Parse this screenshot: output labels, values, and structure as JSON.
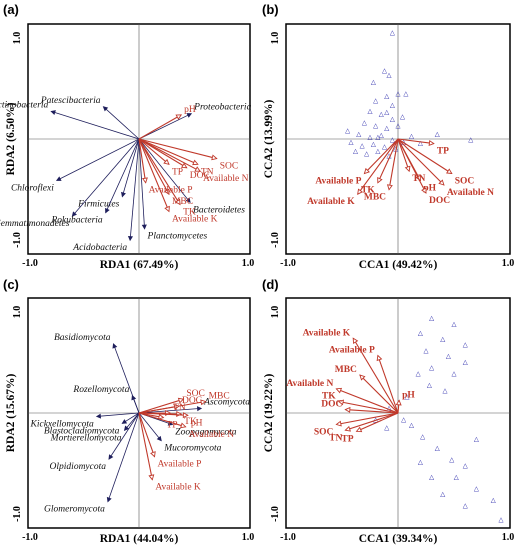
{
  "colors": {
    "env": "#c0392b",
    "taxa": "#1f1f5c",
    "sites": "#1a1aa6"
  },
  "chart_data": [
    {
      "panel": "(a)",
      "type": "scatter",
      "xlabel": "RDA1 (67.49%)",
      "ylabel": "RDA2 (6.50%)",
      "xlim": [
        -1.0,
        1.0
      ],
      "ylim": [
        -1.0,
        1.0
      ],
      "ticks": {
        "xmin": "-1.0",
        "xmax": "1.0",
        "ymin": "-1.0",
        "ymax": "1.0"
      },
      "env": [
        {
          "label": "pH",
          "x": 0.38,
          "y": 0.21
        },
        {
          "label": "TN",
          "x": 0.53,
          "y": -0.22
        },
        {
          "label": "SOC",
          "x": 0.7,
          "y": -0.17
        },
        {
          "label": "DOC",
          "x": 0.43,
          "y": -0.25
        },
        {
          "label": "TP",
          "x": 0.27,
          "y": -0.22
        },
        {
          "label": "Available N",
          "x": 0.55,
          "y": -0.28
        },
        {
          "label": "MBC",
          "x": 0.27,
          "y": -0.48
        },
        {
          "label": "TK",
          "x": 0.37,
          "y": -0.57
        },
        {
          "label": "Available K",
          "x": 0.27,
          "y": -0.63
        },
        {
          "label": "Available P",
          "x": 0.06,
          "y": -0.38
        }
      ],
      "taxa": [
        {
          "label": "Actinobacteria",
          "x": -0.79,
          "y": 0.24
        },
        {
          "label": "Patescibacteria",
          "x": -0.32,
          "y": 0.28
        },
        {
          "label": "Proteobacteria",
          "x": 0.47,
          "y": 0.22
        },
        {
          "label": "Chloroflexi",
          "x": -0.74,
          "y": -0.36
        },
        {
          "label": "Firmicutes",
          "x": -0.15,
          "y": -0.5
        },
        {
          "label": "Bacteroidetes",
          "x": 0.46,
          "y": -0.55
        },
        {
          "label": "Gemmatimonadetes",
          "x": -0.6,
          "y": -0.67
        },
        {
          "label": "Rokubacteria",
          "x": -0.3,
          "y": -0.64
        },
        {
          "label": "Planctomycetes",
          "x": 0.05,
          "y": -0.78
        },
        {
          "label": "Acidobacteria",
          "x": -0.08,
          "y": -0.88
        }
      ]
    },
    {
      "panel": "(b)",
      "type": "scatter",
      "xlabel": "CCA1 (49.42%)",
      "ylabel": "CCA2 (13.99%)",
      "xlim": [
        -1.0,
        1.0
      ],
      "ylim": [
        -1.0,
        1.0
      ],
      "ticks": {
        "xmin": "-1.0",
        "xmax": "1.0",
        "ymin": "-1.0",
        "ymax": "1.0"
      },
      "env": [
        {
          "label": "TP",
          "x": 0.32,
          "y": -0.04
        },
        {
          "label": "TN",
          "x": 0.1,
          "y": -0.28
        },
        {
          "label": "SOC",
          "x": 0.48,
          "y": -0.3
        },
        {
          "label": "Available N",
          "x": 0.41,
          "y": -0.4
        },
        {
          "label": "pH",
          "x": 0.2,
          "y": -0.36
        },
        {
          "label": "DOC",
          "x": 0.25,
          "y": -0.47
        },
        {
          "label": "MBC",
          "x": -0.08,
          "y": -0.44
        },
        {
          "label": "TK",
          "x": -0.18,
          "y": -0.38
        },
        {
          "label": "Available P",
          "x": -0.3,
          "y": -0.3
        },
        {
          "label": "Available K",
          "x": -0.36,
          "y": -0.48
        }
      ],
      "sites": [
        {
          "x": -0.05,
          "y": 0.93
        },
        {
          "x": -0.12,
          "y": 0.6
        },
        {
          "x": -0.08,
          "y": 0.56
        },
        {
          "x": -0.22,
          "y": 0.5
        },
        {
          "x": 0.0,
          "y": 0.4
        },
        {
          "x": -0.1,
          "y": 0.38
        },
        {
          "x": 0.07,
          "y": 0.4
        },
        {
          "x": -0.2,
          "y": 0.34
        },
        {
          "x": -0.05,
          "y": 0.3
        },
        {
          "x": -0.25,
          "y": 0.25
        },
        {
          "x": -0.15,
          "y": 0.22
        },
        {
          "x": -0.05,
          "y": 0.18
        },
        {
          "x": 0.04,
          "y": 0.2
        },
        {
          "x": -0.3,
          "y": 0.15
        },
        {
          "x": -0.2,
          "y": 0.12
        },
        {
          "x": -0.1,
          "y": 0.1
        },
        {
          "x": 0.0,
          "y": 0.12
        },
        {
          "x": -0.35,
          "y": 0.05
        },
        {
          "x": -0.25,
          "y": 0.02
        },
        {
          "x": -0.15,
          "y": 0.04
        },
        {
          "x": -0.05,
          "y": 0.0
        },
        {
          "x": -0.42,
          "y": -0.02
        },
        {
          "x": -0.32,
          "y": -0.05
        },
        {
          "x": -0.22,
          "y": -0.04
        },
        {
          "x": -0.12,
          "y": -0.06
        },
        {
          "x": -0.02,
          "y": -0.08
        },
        {
          "x": -0.38,
          "y": -0.1
        },
        {
          "x": -0.28,
          "y": -0.12
        },
        {
          "x": -0.18,
          "y": -0.1
        },
        {
          "x": -0.08,
          "y": -0.14
        },
        {
          "x": 0.05,
          "y": -0.02
        },
        {
          "x": 0.12,
          "y": 0.03
        },
        {
          "x": -0.45,
          "y": 0.08
        },
        {
          "x": -0.1,
          "y": 0.24
        },
        {
          "x": 0.35,
          "y": 0.05
        },
        {
          "x": 0.65,
          "y": 0.0
        },
        {
          "x": 0.2,
          "y": -0.03
        },
        {
          "x": -0.18,
          "y": 0.02
        }
      ]
    },
    {
      "panel": "(c)",
      "type": "scatter",
      "xlabel": "RDA1 (44.04%)",
      "ylabel": "RDA2 (15.67%)",
      "xlim": [
        -1.0,
        1.0
      ],
      "ylim": [
        -1.0,
        1.0
      ],
      "ticks": {
        "xmin": "-1.0",
        "xmax": "1.0",
        "ymin": "-1.0",
        "ymax": "1.0"
      },
      "env": [
        {
          "label": "SOC",
          "x": 0.4,
          "y": 0.12
        },
        {
          "label": "MBC",
          "x": 0.6,
          "y": 0.1
        },
        {
          "label": "DOC",
          "x": 0.36,
          "y": 0.06
        },
        {
          "label": "TN",
          "x": 0.28,
          "y": 0.0
        },
        {
          "label": "TK",
          "x": 0.38,
          "y": -0.01
        },
        {
          "label": "pH",
          "x": 0.44,
          "y": -0.02
        },
        {
          "label": "TP",
          "x": 0.22,
          "y": -0.04
        },
        {
          "label": "Available N",
          "x": 0.42,
          "y": -0.12
        },
        {
          "label": "Available P",
          "x": 0.14,
          "y": -0.38
        },
        {
          "label": "Available K",
          "x": 0.12,
          "y": -0.58
        }
      ],
      "taxa": [
        {
          "label": "Basidiomycota",
          "x": -0.23,
          "y": 0.6
        },
        {
          "label": "Rozellomycota",
          "x": -0.06,
          "y": 0.15
        },
        {
          "label": "Kickxellomycota",
          "x": -0.38,
          "y": -0.03
        },
        {
          "label": "Blastocladiomycota",
          "x": -0.15,
          "y": -0.09
        },
        {
          "label": "Mortierellomycota",
          "x": -0.13,
          "y": -0.15
        },
        {
          "label": "Olpidiomycota",
          "x": -0.27,
          "y": -0.4
        },
        {
          "label": "Glomeromycota",
          "x": -0.28,
          "y": -0.77
        },
        {
          "label": "Ascomycota",
          "x": 0.56,
          "y": 0.04
        },
        {
          "label": "Zoopagomycota",
          "x": 0.3,
          "y": -0.1
        },
        {
          "label": "Mucoromycota",
          "x": 0.2,
          "y": -0.24
        }
      ]
    },
    {
      "panel": "(d)",
      "type": "scatter",
      "xlabel": "CCA1 (39.34%)",
      "ylabel": "CCA2 (19.22%)",
      "xlim": [
        -1.0,
        1.0
      ],
      "ylim": [
        -1.0,
        1.0
      ],
      "ticks": {
        "xmin": "-1.0",
        "xmax": "1.0",
        "ymin": "-1.0",
        "ymax": "1.0"
      },
      "env": [
        {
          "label": "Available K",
          "x": -0.4,
          "y": 0.65
        },
        {
          "label": "Available P",
          "x": -0.18,
          "y": 0.5
        },
        {
          "label": "MBC",
          "x": -0.34,
          "y": 0.33
        },
        {
          "label": "Available N",
          "x": -0.55,
          "y": 0.21
        },
        {
          "label": "pH",
          "x": 0.01,
          "y": 0.11
        },
        {
          "label": "TK",
          "x": -0.53,
          "y": 0.1
        },
        {
          "label": "DOC",
          "x": -0.47,
          "y": 0.03
        },
        {
          "label": "SOC",
          "x": -0.55,
          "y": -0.1
        },
        {
          "label": "TN",
          "x": -0.47,
          "y": -0.15
        },
        {
          "label": "TP",
          "x": -0.37,
          "y": -0.16
        }
      ],
      "sites": [
        {
          "x": 0.3,
          "y": 0.83
        },
        {
          "x": 0.5,
          "y": 0.78
        },
        {
          "x": 0.2,
          "y": 0.7
        },
        {
          "x": 0.4,
          "y": 0.65
        },
        {
          "x": 0.25,
          "y": 0.55
        },
        {
          "x": 0.45,
          "y": 0.5
        },
        {
          "x": 0.6,
          "y": 0.45
        },
        {
          "x": 0.3,
          "y": 0.4
        },
        {
          "x": 0.5,
          "y": 0.35
        },
        {
          "x": 0.28,
          "y": 0.25
        },
        {
          "x": 0.42,
          "y": 0.2
        },
        {
          "x": 0.6,
          "y": 0.6
        },
        {
          "x": 0.18,
          "y": 0.35
        },
        {
          "x": 0.05,
          "y": -0.05
        },
        {
          "x": 0.12,
          "y": -0.1
        },
        {
          "x": 0.22,
          "y": -0.2
        },
        {
          "x": 0.35,
          "y": -0.3
        },
        {
          "x": 0.48,
          "y": -0.4
        },
        {
          "x": 0.6,
          "y": -0.45
        },
        {
          "x": 0.3,
          "y": -0.55
        },
        {
          "x": 0.52,
          "y": -0.55
        },
        {
          "x": 0.7,
          "y": -0.65
        },
        {
          "x": 0.85,
          "y": -0.75
        },
        {
          "x": 0.92,
          "y": -0.92
        },
        {
          "x": 0.4,
          "y": -0.7
        },
        {
          "x": 0.6,
          "y": -0.8
        },
        {
          "x": 0.2,
          "y": -0.42
        },
        {
          "x": -0.1,
          "y": -0.12
        },
        {
          "x": -0.2,
          "y": -0.05
        },
        {
          "x": -0.08,
          "y": 0.05
        },
        {
          "x": 0.08,
          "y": 0.15
        },
        {
          "x": 0.7,
          "y": -0.22
        }
      ]
    }
  ]
}
